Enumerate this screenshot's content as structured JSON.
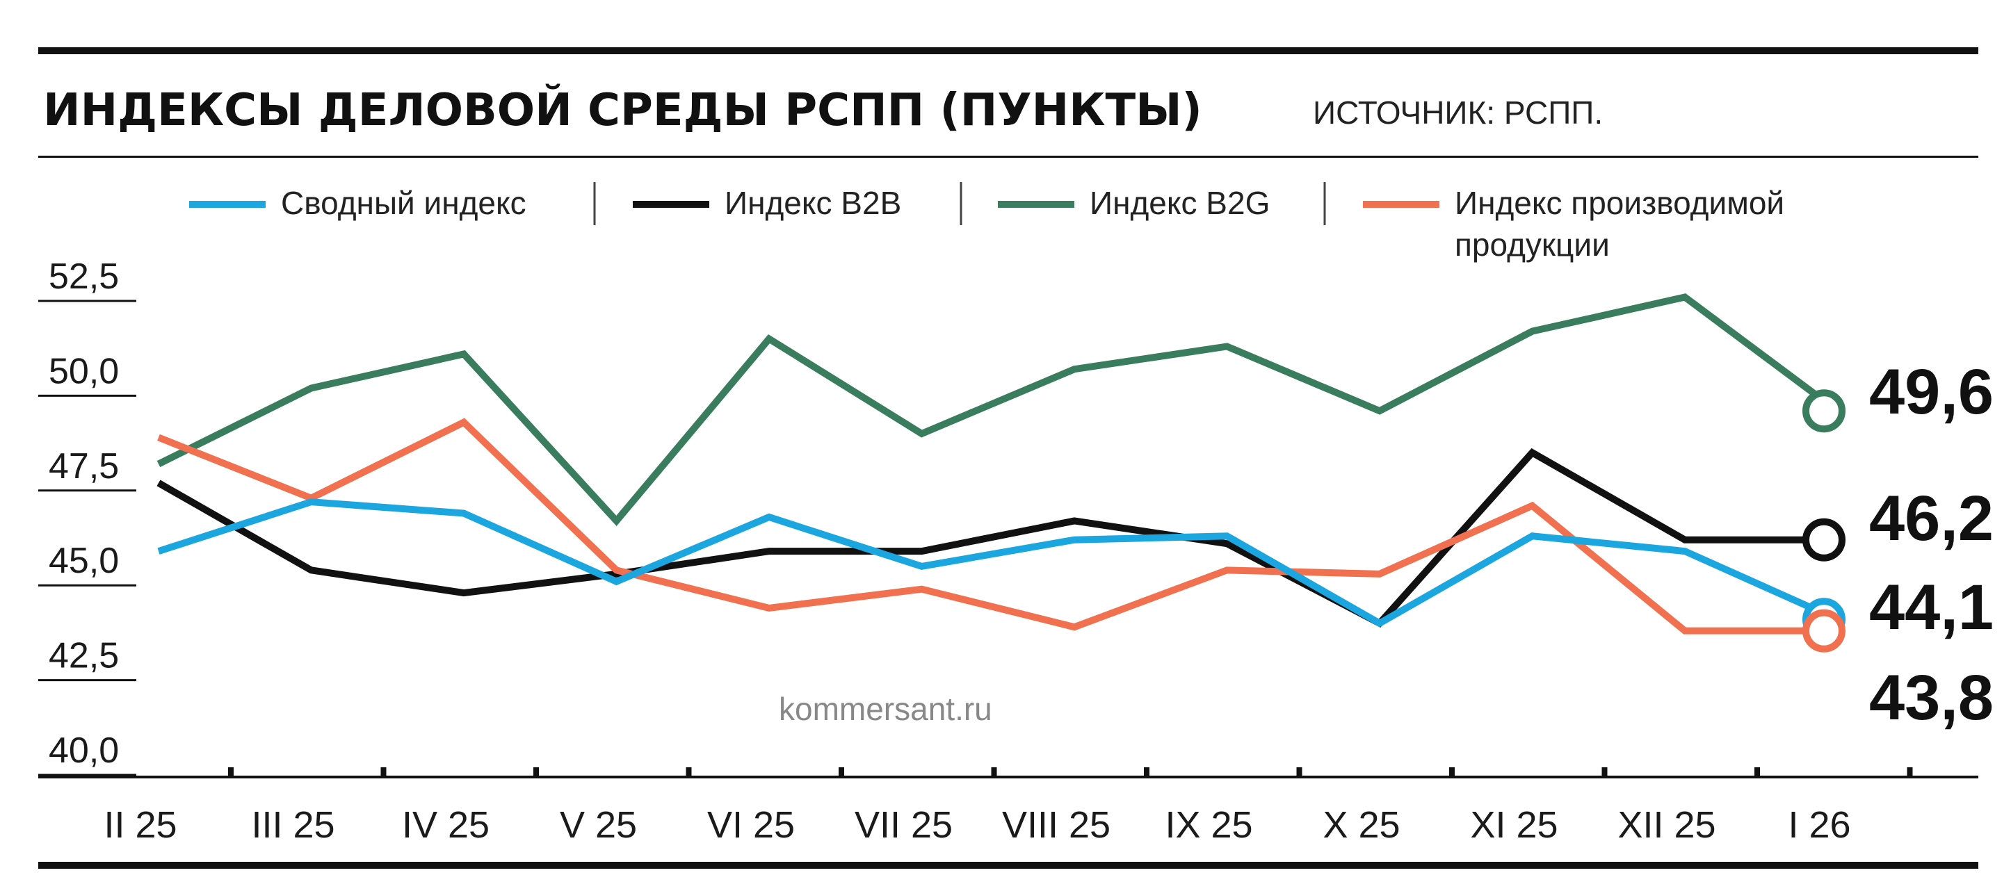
{
  "chart_data": {
    "type": "line",
    "title": "ИНДЕКСЫ ДЕЛОВОЙ СРЕДЫ РСПП (ПУНКТЫ)",
    "source": "ИСТОЧНИК: РСПП.",
    "watermark": "kommersant.ru",
    "categories": [
      "II 25",
      "III 25",
      "IV 25",
      "V 25",
      "VI 25",
      "VII 25",
      "VIII 25",
      "IX 25",
      "X 25",
      "XI 25",
      "XII 25",
      "I 26"
    ],
    "y_ticks": [
      "52,5",
      "50,0",
      "47,5",
      "45,0",
      "42,5",
      "40,0"
    ],
    "ylim": [
      40,
      52.5
    ],
    "grid": false,
    "legend_position": "top",
    "series": [
      {
        "name": "Сводный индекс",
        "color": "#1ba6e0",
        "values": [
          45.9,
          47.2,
          46.9,
          45.1,
          46.8,
          45.5,
          46.2,
          46.3,
          44.0,
          46.3,
          45.9,
          44.1
        ],
        "end_label": "44,1"
      },
      {
        "name": "Индекс B2B",
        "color": "#111111",
        "values": [
          47.7,
          45.4,
          44.8,
          45.3,
          45.9,
          45.9,
          46.7,
          46.1,
          44.0,
          48.5,
          46.2,
          46.2
        ],
        "end_label": "46,2"
      },
      {
        "name": "Индекс B2G",
        "color": "#3a7d5e",
        "values": [
          48.2,
          50.2,
          51.1,
          46.7,
          51.5,
          49.0,
          50.7,
          51.3,
          49.6,
          51.7,
          52.6,
          49.6
        ],
        "end_label": "49,6"
      },
      {
        "name": "Индекс производимой продукции",
        "color": "#f0704f",
        "values": [
          48.9,
          47.3,
          49.3,
          45.4,
          44.4,
          44.9,
          43.9,
          45.4,
          45.3,
          47.1,
          43.8,
          43.8
        ],
        "end_label": "43,8"
      }
    ]
  }
}
